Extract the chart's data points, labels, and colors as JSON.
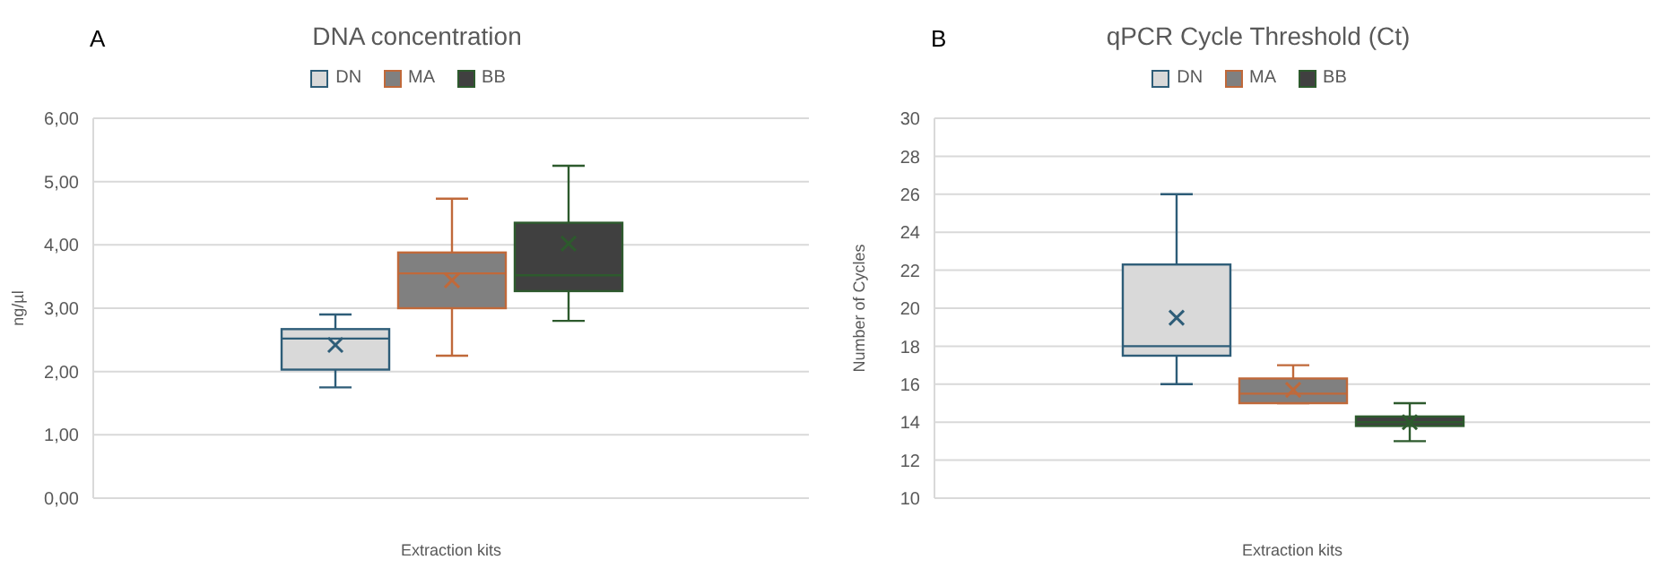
{
  "chart_data": [
    {
      "type": "box",
      "title": "DNA concentration",
      "xlabel": "Extraction kits",
      "ylabel": "ng/µl",
      "annotations": [
        "A"
      ],
      "categories": [
        null
      ],
      "legend": "top",
      "grid": "y",
      "ylim": [
        0,
        6
      ],
      "yticks": [
        {
          "value": 0,
          "label": "0,00"
        },
        {
          "value": 1,
          "label": "1,00"
        },
        {
          "value": 2,
          "label": "2,00"
        },
        {
          "value": 3,
          "label": "3,00"
        },
        {
          "value": 4,
          "label": "4,00"
        },
        {
          "value": 5,
          "label": "5,00"
        },
        {
          "value": 6,
          "label": "6,00"
        }
      ],
      "series": [
        {
          "name": "DN",
          "color": "#2e5d78",
          "colors": [
            "#d9d9d9"
          ],
          "boxes": [
            {
              "low": 1.75,
              "q1": 2.03,
              "median": 2.52,
              "q3": 2.67,
              "high": 2.9,
              "mean": 2.42
            }
          ]
        },
        {
          "name": "MA",
          "color": "#c0693a",
          "colors": [
            "#808080"
          ],
          "boxes": [
            {
              "low": 2.25,
              "q1": 3.0,
              "median": 3.55,
              "q3": 3.88,
              "high": 4.73,
              "mean": 3.44
            }
          ]
        },
        {
          "name": "BB",
          "color": "#2d5a2d",
          "colors": [
            "#404040"
          ],
          "boxes": [
            {
              "low": 2.8,
              "q1": 3.27,
              "median": 3.52,
              "q3": 4.35,
              "high": 5.25,
              "mean": 4.02
            }
          ]
        }
      ]
    },
    {
      "type": "box",
      "title": "qPCR Cycle Threshold (Ct)",
      "xlabel": "Extraction kits",
      "ylabel": "Number of Cycles",
      "annotations": [
        "B"
      ],
      "categories": [
        null
      ],
      "legend": "top",
      "grid": "y",
      "ylim": [
        10,
        30
      ],
      "yticks": [
        10,
        12,
        14,
        16,
        18,
        20,
        22,
        24,
        26,
        28,
        30
      ],
      "series": [
        {
          "name": "DN",
          "color": "#2e5d78",
          "colors": [
            "#d9d9d9"
          ],
          "boxes": [
            {
              "low": 16,
              "q1": 17.5,
              "median": 18,
              "q3": 22.3,
              "high": 26,
              "mean": 19.5
            }
          ]
        },
        {
          "name": "MA",
          "color": "#c0693a",
          "colors": [
            "#808080"
          ],
          "boxes": [
            {
              "low": 15,
              "q1": 15,
              "median": 15.5,
              "q3": 16.3,
              "high": 17,
              "mean": 15.7
            }
          ]
        },
        {
          "name": "BB",
          "color": "#2d5a2d",
          "colors": [
            "#404040"
          ],
          "boxes": [
            {
              "low": 13,
              "q1": 13.8,
              "median": 14,
              "q3": 14.3,
              "high": 15,
              "mean": 14
            }
          ]
        }
      ]
    }
  ]
}
